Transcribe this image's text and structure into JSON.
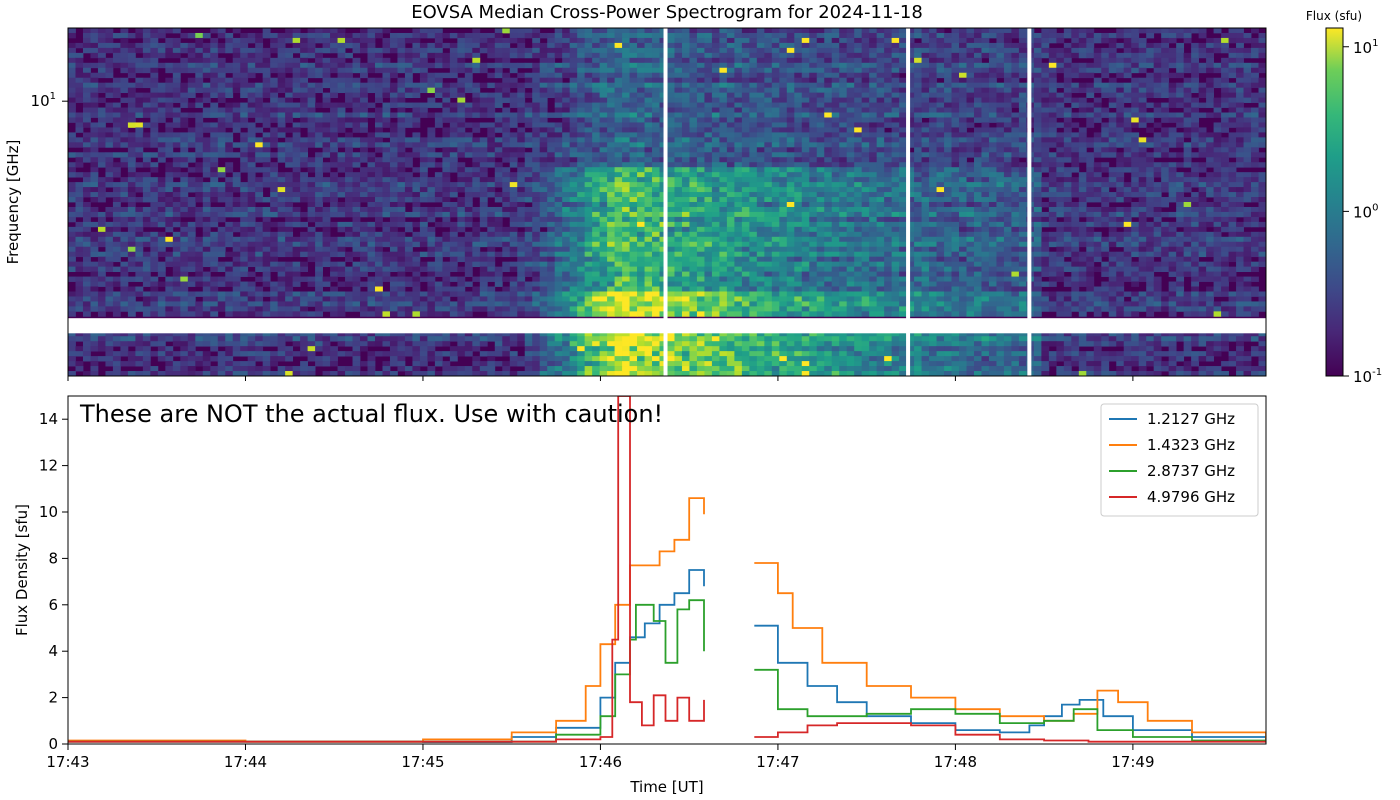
{
  "figure": {
    "title": "EOVSA Median Cross-Power Spectrogram for 2024-11-18",
    "colorbar_label": "Flux (sfu)",
    "colorbar_ticks": [
      {
        "value": 0.1,
        "label": "10^-1"
      },
      {
        "value": 1,
        "label": "10^0"
      },
      {
        "value": 10,
        "label": "10^1"
      }
    ],
    "colors": {
      "viridis_low": "#440154",
      "viridis_mid": "#21918c",
      "viridis_high": "#fde725",
      "series_1": "#1f77b4",
      "series_2": "#ff7f0e",
      "series_3": "#2ca02c",
      "series_4": "#d62728"
    }
  },
  "chart_data": [
    {
      "type": "heatmap",
      "ylabel": "Frequency [GHz]",
      "yticks": [
        {
          "value": 10,
          "label": "10^1"
        }
      ],
      "yscale": "log",
      "ylim": [
        1.1,
        18
      ],
      "xlim": [
        "17:43",
        "17:49:45"
      ],
      "color_scale": "log",
      "clim": [
        0.1,
        13
      ],
      "colormap": "viridis",
      "data_gaps_time": [
        "17:46:22",
        "17:47:44",
        "17:48:25"
      ],
      "data_gap_freq_ghz": [
        1.55,
        1.75
      ],
      "flare_peak_time": "17:46:10",
      "flare_span": [
        "17:45:35",
        "17:48:30"
      ]
    },
    {
      "type": "line",
      "annotation": "These are NOT the actual flux. Use with caution!",
      "xlabel": "Time [UT]",
      "ylabel": "Flux Density [sfu]",
      "ylim": [
        0,
        15
      ],
      "yticks": [
        0,
        2,
        4,
        6,
        8,
        10,
        12,
        14
      ],
      "xticks": [
        "17:43",
        "17:44",
        "17:45",
        "17:46",
        "17:47",
        "17:48",
        "17:49"
      ],
      "legend_position": "top-right",
      "series": [
        {
          "name": "1.2127 GHz",
          "points": [
            [
              "17:43:00",
              0.1
            ],
            [
              "17:45:00",
              0.08
            ],
            [
              "17:45:30",
              0.3
            ],
            [
              "17:45:45",
              0.7
            ],
            [
              "17:46:00",
              2.0
            ],
            [
              "17:46:05",
              3.5
            ],
            [
              "17:46:10",
              4.6
            ],
            [
              "17:46:15",
              5.2
            ],
            [
              "17:46:20",
              6.0
            ],
            [
              "17:46:25",
              6.5
            ],
            [
              "17:46:30",
              7.5
            ],
            [
              "17:46:35",
              6.8
            ],
            [
              "17:46:45",
              null
            ],
            [
              "17:46:52",
              5.1
            ],
            [
              "17:47:00",
              3.5
            ],
            [
              "17:47:10",
              2.5
            ],
            [
              "17:47:20",
              1.8
            ],
            [
              "17:47:30",
              1.2
            ],
            [
              "17:47:45",
              0.9
            ],
            [
              "17:48:00",
              0.6
            ],
            [
              "17:48:15",
              0.5
            ],
            [
              "17:48:25",
              0.8
            ],
            [
              "17:48:30",
              1.2
            ],
            [
              "17:48:36",
              1.7
            ],
            [
              "17:48:42",
              1.9
            ],
            [
              "17:48:50",
              1.2
            ],
            [
              "17:49:00",
              0.6
            ],
            [
              "17:49:20",
              0.3
            ],
            [
              "17:49:45",
              0.15
            ]
          ]
        },
        {
          "name": "1.4323 GHz",
          "points": [
            [
              "17:43:00",
              0.15
            ],
            [
              "17:44:00",
              0.1
            ],
            [
              "17:45:00",
              0.2
            ],
            [
              "17:45:30",
              0.5
            ],
            [
              "17:45:45",
              1.0
            ],
            [
              "17:45:55",
              2.5
            ],
            [
              "17:46:00",
              4.3
            ],
            [
              "17:46:05",
              6.0
            ],
            [
              "17:46:10",
              7.7
            ],
            [
              "17:46:20",
              8.3
            ],
            [
              "17:46:25",
              8.8
            ],
            [
              "17:46:30",
              10.6
            ],
            [
              "17:46:35",
              9.9
            ],
            [
              "17:46:45",
              null
            ],
            [
              "17:46:52",
              7.8
            ],
            [
              "17:47:00",
              6.5
            ],
            [
              "17:47:05",
              5.0
            ],
            [
              "17:47:15",
              3.5
            ],
            [
              "17:47:30",
              2.5
            ],
            [
              "17:47:45",
              2.0
            ],
            [
              "17:48:00",
              1.5
            ],
            [
              "17:48:15",
              1.2
            ],
            [
              "17:48:30",
              1.0
            ],
            [
              "17:48:40",
              1.3
            ],
            [
              "17:48:48",
              2.3
            ],
            [
              "17:48:55",
              1.8
            ],
            [
              "17:49:05",
              1.0
            ],
            [
              "17:49:20",
              0.5
            ],
            [
              "17:49:45",
              0.2
            ]
          ]
        },
        {
          "name": "2.8737 GHz",
          "points": [
            [
              "17:43:00",
              0.1
            ],
            [
              "17:45:30",
              0.1
            ],
            [
              "17:45:45",
              0.4
            ],
            [
              "17:46:00",
              1.2
            ],
            [
              "17:46:05",
              3.0
            ],
            [
              "17:46:10",
              4.5
            ],
            [
              "17:46:12",
              6.0
            ],
            [
              "17:46:18",
              5.3
            ],
            [
              "17:46:22",
              3.5
            ],
            [
              "17:46:26",
              5.8
            ],
            [
              "17:46:30",
              6.2
            ],
            [
              "17:46:35",
              4.0
            ],
            [
              "17:46:45",
              null
            ],
            [
              "17:46:52",
              3.2
            ],
            [
              "17:47:00",
              1.5
            ],
            [
              "17:47:10",
              1.2
            ],
            [
              "17:47:20",
              1.2
            ],
            [
              "17:47:30",
              1.3
            ],
            [
              "17:47:45",
              1.5
            ],
            [
              "17:48:00",
              1.3
            ],
            [
              "17:48:15",
              0.9
            ],
            [
              "17:48:30",
              1.0
            ],
            [
              "17:48:40",
              1.5
            ],
            [
              "17:48:48",
              0.6
            ],
            [
              "17:49:00",
              0.3
            ],
            [
              "17:49:20",
              0.15
            ],
            [
              "17:49:45",
              0.1
            ]
          ]
        },
        {
          "name": "4.9796 GHz",
          "points": [
            [
              "17:43:00",
              0.1
            ],
            [
              "17:45:30",
              0.1
            ],
            [
              "17:45:45",
              0.2
            ],
            [
              "17:46:00",
              0.3
            ],
            [
              "17:46:04",
              4.5
            ],
            [
              "17:46:06",
              15
            ],
            [
              "17:46:08",
              15
            ],
            [
              "17:46:10",
              1.8
            ],
            [
              "17:46:14",
              0.8
            ],
            [
              "17:46:18",
              2.1
            ],
            [
              "17:46:22",
              1.0
            ],
            [
              "17:46:26",
              2.0
            ],
            [
              "17:46:30",
              1.0
            ],
            [
              "17:46:35",
              1.9
            ],
            [
              "17:46:45",
              null
            ],
            [
              "17:46:52",
              0.3
            ],
            [
              "17:47:00",
              0.5
            ],
            [
              "17:47:10",
              0.8
            ],
            [
              "17:47:20",
              0.9
            ],
            [
              "17:47:30",
              0.9
            ],
            [
              "17:47:45",
              0.8
            ],
            [
              "17:48:00",
              0.4
            ],
            [
              "17:48:15",
              0.2
            ],
            [
              "17:48:30",
              0.15
            ],
            [
              "17:48:45",
              0.1
            ],
            [
              "17:49:45",
              0.05
            ]
          ]
        }
      ]
    }
  ]
}
